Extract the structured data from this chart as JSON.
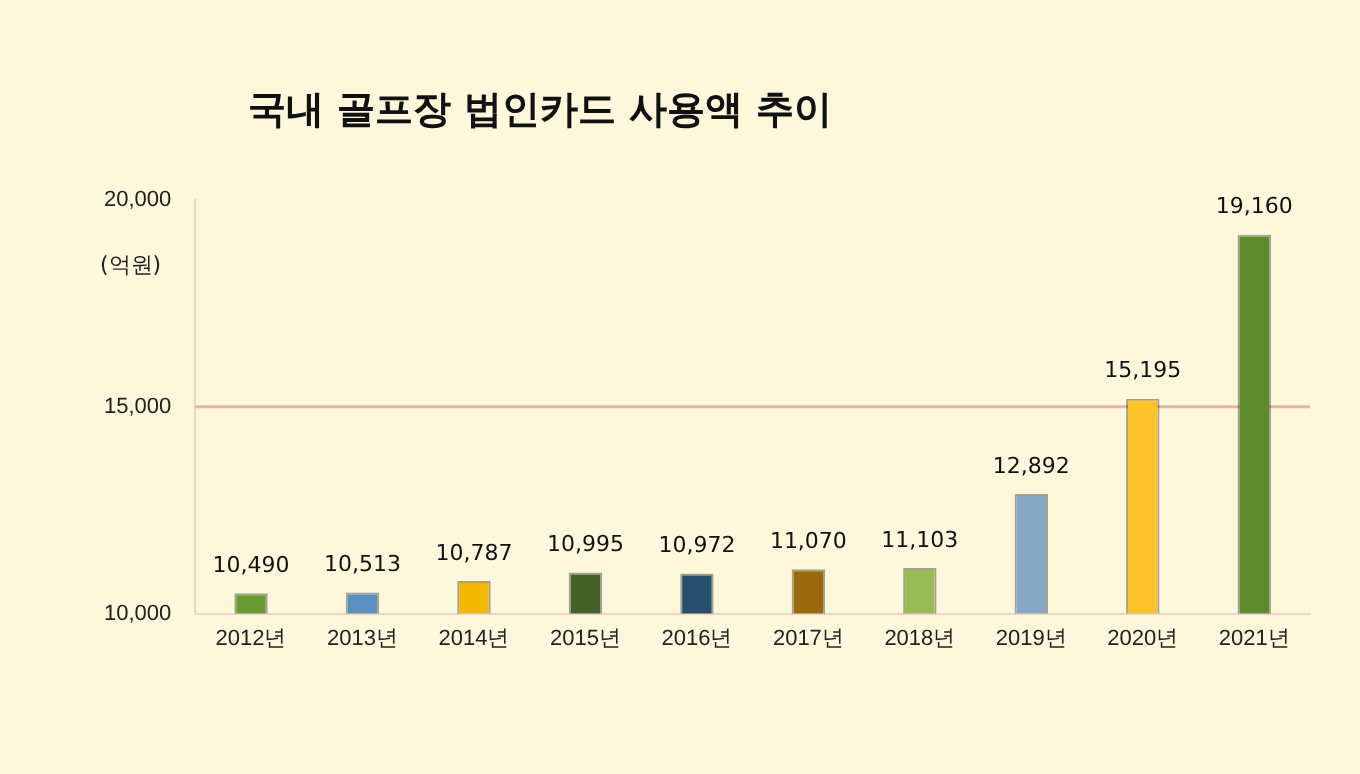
{
  "chart_data": {
    "type": "bar",
    "title": "국내 골프장 법인카드 사용액 추이",
    "ylabel": "(억원)",
    "categories": [
      "2012년",
      "2013년",
      "2014년",
      "2015년",
      "2016년",
      "2017년",
      "2018년",
      "2019년",
      "2020년",
      "2021년"
    ],
    "values": [
      10490,
      10513,
      10787,
      10995,
      10972,
      11070,
      11103,
      12892,
      15195,
      19160
    ],
    "colors": [
      "#6a9a32",
      "#5b8fbf",
      "#f5b800",
      "#45612a",
      "#274f6b",
      "#9a6a0a",
      "#99bb55",
      "#86a9c3",
      "#fbc22a",
      "#5e8a2e"
    ],
    "ylim": [
      10000,
      20000
    ],
    "yticks": [
      {
        "value": 10000,
        "label": "10,000"
      },
      {
        "value": 15000,
        "label": "15,000"
      },
      {
        "value": 20000,
        "label": "20,000"
      }
    ],
    "value_labels": [
      "10,490",
      "10,513",
      "10,787",
      "10,995",
      "10,972",
      "11,070",
      "11,103",
      "12,892",
      "15,195",
      "19,160"
    ],
    "ref_lines": [
      {
        "axis": "y",
        "value": 15000,
        "color": "#e8b4a4"
      }
    ]
  }
}
